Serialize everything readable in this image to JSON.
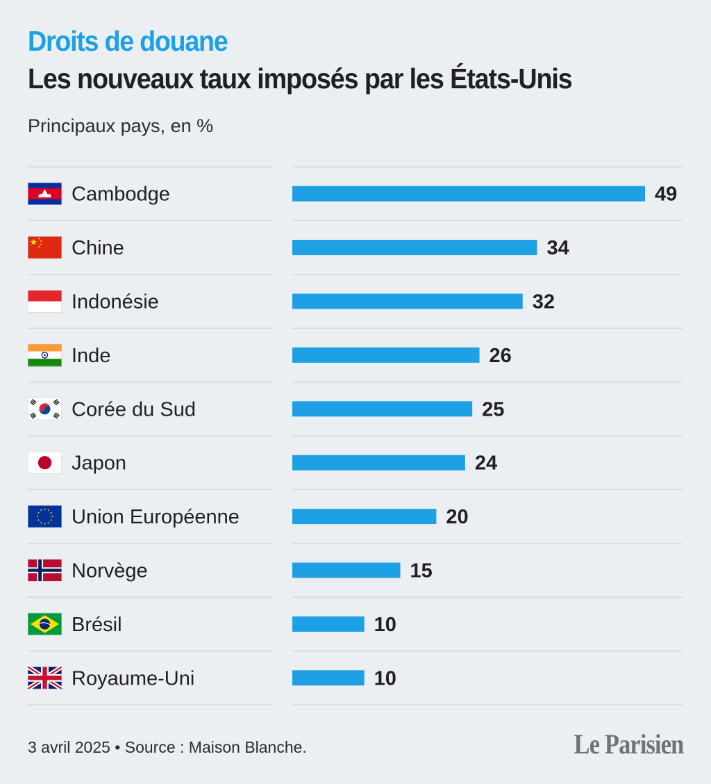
{
  "header": {
    "kicker": "Droits de douane",
    "title": "Les nouveaux taux imposés par les États-Unis",
    "subtitle": "Principaux pays, en %"
  },
  "footer": {
    "note": "3 avril 2025 • Source : Maison Blanche.",
    "brand": "Le Parisien"
  },
  "colors": {
    "bar": "#1ea0e4",
    "rule": "#d3d7dc",
    "text": "#1f1f24",
    "background": "#eceff2"
  },
  "chart_data": {
    "type": "bar",
    "orientation": "horizontal",
    "categories": [
      "Cambodge",
      "Chine",
      "Indonésie",
      "Inde",
      "Corée du Sud",
      "Japon",
      "Union Européenne",
      "Norvège",
      "Brésil",
      "Royaume-Uni"
    ],
    "flags": [
      "cambodia-flag-icon",
      "china-flag-icon",
      "indonesia-flag-icon",
      "india-flag-icon",
      "south-korea-flag-icon",
      "japan-flag-icon",
      "european-union-flag-icon",
      "norway-flag-icon",
      "brazil-flag-icon",
      "united-kingdom-flag-icon"
    ],
    "values": [
      49,
      34,
      32,
      26,
      25,
      24,
      20,
      15,
      10,
      10
    ],
    "xlim": [
      0,
      49
    ],
    "grid": false,
    "legend": "none",
    "data_labels": true
  }
}
